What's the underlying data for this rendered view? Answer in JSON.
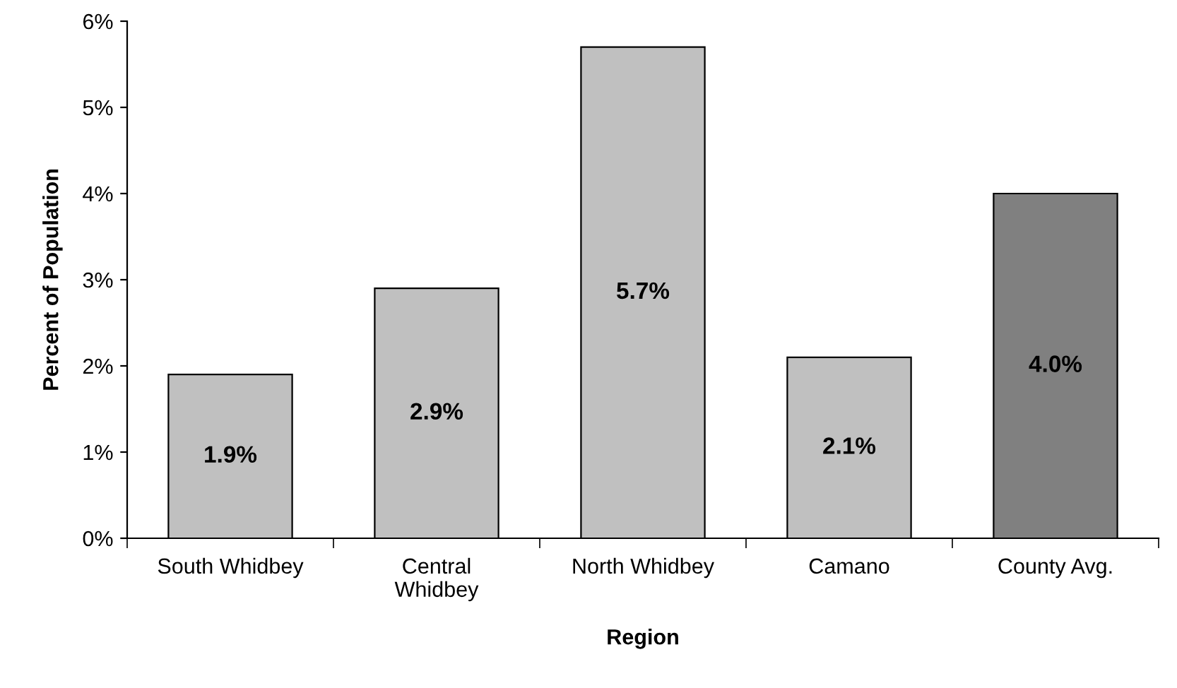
{
  "chart_data": {
    "type": "bar",
    "xlabel": "Region",
    "ylabel": "Percent of Population",
    "categories": [
      "South Whidbey",
      "Central\nWhidbey",
      "North Whidbey",
      "Camano",
      "County Avg."
    ],
    "values": [
      1.9,
      2.9,
      5.7,
      2.1,
      4.0
    ],
    "colors": [
      "#c0c0c0",
      "#c0c0c0",
      "#c0c0c0",
      "#c0c0c0",
      "#808080"
    ],
    "value_labels": [
      "1.9%",
      "2.9%",
      "5.7%",
      "2.1%",
      "4.0%"
    ],
    "ylim": [
      0,
      6
    ],
    "yticks": [
      {
        "value": 0,
        "label": "0%"
      },
      {
        "value": 1,
        "label": "1%"
      },
      {
        "value": 2,
        "label": "2%"
      },
      {
        "value": 3,
        "label": "3%"
      },
      {
        "value": 4,
        "label": "4%"
      },
      {
        "value": 5,
        "label": "5%"
      },
      {
        "value": 6,
        "label": "6%"
      }
    ],
    "grid": false,
    "legend": false
  }
}
